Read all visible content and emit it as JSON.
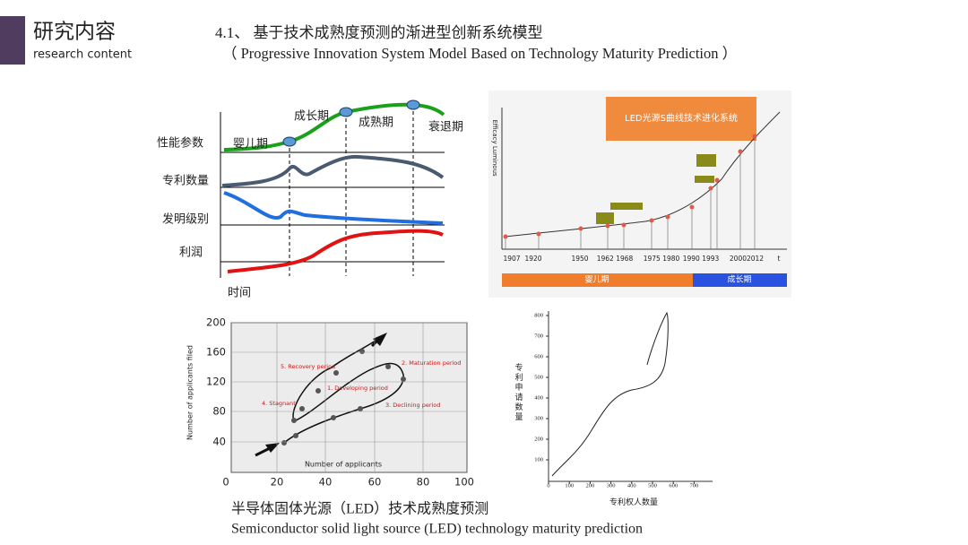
{
  "header": {
    "title": "研究内容",
    "subtitle": "research content"
  },
  "heading": {
    "line1": "4.1、 基于技术成熟度预测的渐进型创新系统模型",
    "line2": "（ Progressive Innovation System Model Based on Technology Maturity Prediction ）"
  },
  "figure1": {
    "row_labels": [
      "性能参数",
      "专利数量",
      "发明级别",
      "利润"
    ],
    "stage_labels": [
      "婴儿期",
      "成长期",
      "成熟期",
      "衰退期"
    ],
    "x_label": "时间"
  },
  "figure2": {
    "title": "LED光源S曲线技术进化系统",
    "y_label": "Efficacy Luminous",
    "x_labels": [
      "1907",
      "1920",
      "1950",
      "1962 1968",
      "1975 1980",
      "1990 1993",
      "20002012",
      "t"
    ],
    "phases": [
      "婴儿期",
      "成长期"
    ]
  },
  "figure3": {
    "y_label": "Number of applicants filed",
    "x_label": "Number of applicants",
    "yticks": [
      200,
      160,
      120,
      80,
      40
    ],
    "xticks": [
      0,
      20,
      40,
      60,
      80,
      100
    ],
    "annotations": [
      "5. Recovery period",
      "2. Maturation period",
      "1. Developing period",
      "4. Stagnant",
      "3. Declining period"
    ]
  },
  "figure4": {
    "y_label": "专利申请数量",
    "x_label": "专利权人数量",
    "yticks": [
      800,
      700,
      600,
      500,
      400,
      300,
      200,
      100
    ],
    "xticks": [
      0,
      100,
      200,
      300,
      400,
      500,
      600,
      700
    ]
  },
  "caption": {
    "zh": "半导体固体光源（LED）技术成熟度预测",
    "en": "Semiconductor solid light source (LED) technology maturity prediction"
  }
}
